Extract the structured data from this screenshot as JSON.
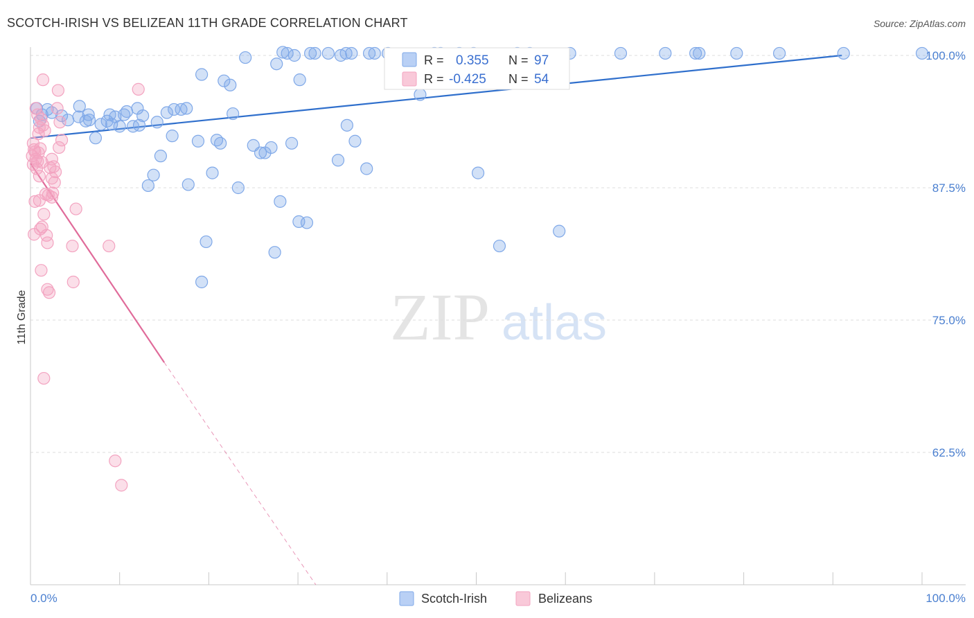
{
  "chart_data": {
    "type": "scatter",
    "title": "SCOTCH-IRISH VS BELIZEAN 11TH GRADE CORRELATION CHART",
    "source": "Source: ZipAtlas.com",
    "ylabel": "11th Grade",
    "xlabel": "",
    "xlim": [
      0,
      100
    ],
    "ylim": [
      50,
      101
    ],
    "x_tick_labels": [
      "0.0%",
      "100.0%"
    ],
    "y_tick_values": [
      100,
      87.5,
      75,
      62.5
    ],
    "y_tick_labels": [
      "100.0%",
      "87.5%",
      "75.0%",
      "62.5%"
    ],
    "watermark": {
      "zip": "ZIP",
      "atlas": "atlas"
    },
    "legend": {
      "rows": [
        {
          "r_label": "R =",
          "r_value": "0.355",
          "n_label": "N =",
          "n_value": "97"
        },
        {
          "r_label": "R =",
          "r_value": "-0.425",
          "n_label": "N =",
          "n_value": "54"
        }
      ]
    },
    "series": [
      {
        "name": "Scotch-Irish",
        "color": "#7fa8e8",
        "line_color": "#2f6fcc",
        "trend": {
          "x": [
            0,
            91
          ],
          "y": [
            92.2,
            100
          ]
        },
        "points": [
          [
            0.7,
            95.0
          ],
          [
            1.3,
            94.4
          ],
          [
            1.0,
            93.8
          ],
          [
            1.9,
            94.9
          ],
          [
            2.4,
            94.6
          ],
          [
            3.5,
            94.3
          ],
          [
            4.2,
            93.9
          ],
          [
            5.4,
            94.2
          ],
          [
            5.5,
            95.2
          ],
          [
            6.2,
            93.8
          ],
          [
            6.5,
            94.4
          ],
          [
            6.6,
            93.9
          ],
          [
            7.3,
            92.2
          ],
          [
            7.9,
            93.5
          ],
          [
            8.6,
            93.8
          ],
          [
            8.9,
            94.4
          ],
          [
            9.1,
            93.5
          ],
          [
            9.5,
            94.2
          ],
          [
            10.0,
            93.3
          ],
          [
            10.5,
            94.4
          ],
          [
            10.8,
            94.7
          ],
          [
            11.5,
            93.3
          ],
          [
            12.0,
            95.0
          ],
          [
            12.2,
            93.4
          ],
          [
            12.6,
            94.3
          ],
          [
            14.2,
            93.7
          ],
          [
            14.6,
            90.5
          ],
          [
            15.3,
            94.6
          ],
          [
            13.2,
            87.7
          ],
          [
            13.8,
            88.7
          ],
          [
            15.9,
            92.4
          ],
          [
            16.1,
            94.9
          ],
          [
            16.9,
            94.9
          ],
          [
            17.5,
            95.0
          ],
          [
            17.7,
            87.8
          ],
          [
            18.8,
            91.9
          ],
          [
            19.2,
            78.6
          ],
          [
            19.2,
            98.2
          ],
          [
            19.7,
            82.4
          ],
          [
            20.4,
            88.9
          ],
          [
            20.9,
            92.0
          ],
          [
            21.3,
            91.7
          ],
          [
            21.7,
            97.6
          ],
          [
            22.4,
            97.2
          ],
          [
            22.7,
            94.5
          ],
          [
            23.3,
            87.5
          ],
          [
            24.1,
            99.8
          ],
          [
            25.0,
            91.5
          ],
          [
            25.8,
            90.8
          ],
          [
            26.3,
            90.8
          ],
          [
            27.0,
            91.3
          ],
          [
            27.4,
            81.4
          ],
          [
            27.6,
            99.2
          ],
          [
            28.0,
            86.2
          ],
          [
            28.3,
            100.3
          ],
          [
            28.8,
            100.2
          ],
          [
            29.3,
            91.7
          ],
          [
            29.6,
            100.0
          ],
          [
            30.1,
            84.3
          ],
          [
            30.2,
            97.7
          ],
          [
            31.0,
            84.2
          ],
          [
            31.4,
            100.2
          ],
          [
            31.9,
            100.2
          ],
          [
            34.5,
            90.1
          ],
          [
            34.8,
            100.0
          ],
          [
            35.4,
            100.2
          ],
          [
            35.5,
            93.4
          ],
          [
            36.0,
            100.2
          ],
          [
            36.4,
            91.9
          ],
          [
            37.7,
            89.3
          ],
          [
            38.0,
            100.2
          ],
          [
            38.6,
            100.2
          ],
          [
            40.1,
            100.2
          ],
          [
            41.4,
            100.0
          ],
          [
            42.5,
            100.0
          ],
          [
            43.7,
            96.3
          ],
          [
            46.0,
            100.2
          ],
          [
            48.1,
            100.2
          ],
          [
            50.2,
            88.9
          ],
          [
            52.6,
            82.0
          ],
          [
            54.6,
            100.2
          ],
          [
            56.0,
            100.2
          ],
          [
            59.3,
            83.4
          ],
          [
            60.5,
            100.2
          ],
          [
            66.2,
            100.2
          ],
          [
            71.2,
            100.2
          ],
          [
            74.6,
            100.2
          ],
          [
            75.0,
            100.2
          ],
          [
            79.2,
            100.2
          ],
          [
            84.0,
            100.2
          ],
          [
            91.2,
            100.2
          ],
          [
            100.0,
            100.2
          ],
          [
            49.7,
            100.2
          ],
          [
            53.0,
            98.2
          ],
          [
            56.8,
            99.3
          ],
          [
            45.3,
            100.2
          ],
          [
            33.4,
            100.2
          ]
        ]
      },
      {
        "name": "Belizeans",
        "color": "#f3a3c0",
        "line_color": "#e06b9a",
        "trend": {
          "x": [
            0,
            15
          ],
          "y": [
            89.8,
            71.0
          ]
        },
        "trend_dashed": {
          "x": [
            15,
            32
          ],
          "y": [
            71.0,
            50.0
          ]
        },
        "points": [
          [
            0.2,
            90.5
          ],
          [
            0.3,
            89.7
          ],
          [
            0.4,
            91.1
          ],
          [
            0.5,
            90.9
          ],
          [
            0.6,
            90.2
          ],
          [
            0.7,
            89.3
          ],
          [
            0.8,
            90.0
          ],
          [
            1.1,
            91.2
          ],
          [
            0.9,
            92.6
          ],
          [
            1.0,
            93.2
          ],
          [
            1.2,
            94.0
          ],
          [
            1.4,
            93.4
          ],
          [
            0.6,
            95.0
          ],
          [
            0.4,
            83.1
          ],
          [
            0.5,
            86.2
          ],
          [
            1.0,
            86.3
          ],
          [
            1.1,
            83.6
          ],
          [
            1.3,
            83.8
          ],
          [
            1.5,
            85.0
          ],
          [
            1.2,
            79.7
          ],
          [
            1.8,
            83.0
          ],
          [
            1.9,
            82.3
          ],
          [
            1.9,
            77.9
          ],
          [
            2.1,
            77.6
          ],
          [
            2.0,
            86.8
          ],
          [
            2.4,
            86.6
          ],
          [
            2.5,
            87.0
          ],
          [
            2.4,
            88.4
          ],
          [
            2.6,
            89.5
          ],
          [
            2.4,
            90.2
          ],
          [
            2.8,
            89.0
          ],
          [
            2.7,
            88.0
          ],
          [
            3.0,
            95.0
          ],
          [
            3.1,
            96.7
          ],
          [
            3.2,
            91.3
          ],
          [
            3.3,
            93.7
          ],
          [
            3.5,
            92.0
          ],
          [
            4.7,
            82.0
          ],
          [
            4.8,
            78.6
          ],
          [
            5.1,
            85.5
          ],
          [
            8.8,
            82.0
          ],
          [
            9.5,
            61.7
          ],
          [
            10.2,
            59.4
          ],
          [
            12.1,
            96.8
          ],
          [
            1.4,
            97.7
          ],
          [
            1.5,
            69.5
          ],
          [
            0.8,
            94.4
          ],
          [
            1.0,
            88.6
          ],
          [
            1.3,
            89.9
          ],
          [
            1.6,
            92.9
          ],
          [
            1.7,
            86.9
          ],
          [
            2.2,
            89.4
          ],
          [
            0.3,
            91.7
          ],
          [
            0.9,
            90.8
          ]
        ]
      }
    ]
  }
}
